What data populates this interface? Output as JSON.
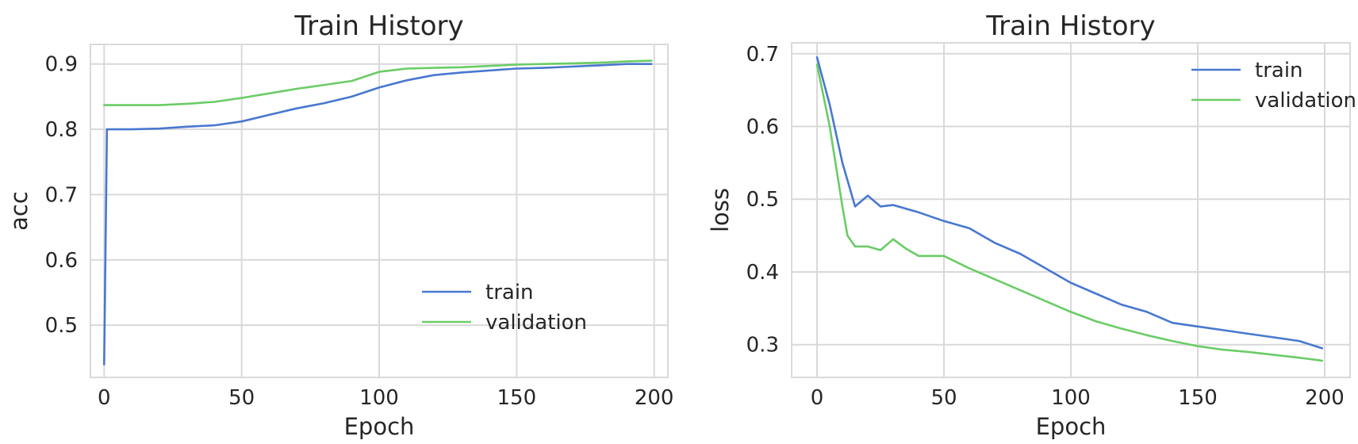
{
  "chart_data": [
    {
      "type": "line",
      "title": "Train History",
      "xlabel": "Epoch",
      "ylabel": "acc",
      "xlim": [
        -5,
        205
      ],
      "ylim": [
        0.42,
        0.93
      ],
      "xticks": [
        0,
        50,
        100,
        150,
        200
      ],
      "yticks": [
        0.5,
        0.6,
        0.7,
        0.8,
        0.9
      ],
      "ytick_labels": [
        "0.5",
        "0.6",
        "0.7",
        "0.8",
        "0.9"
      ],
      "grid": true,
      "legend_position": "lower-right",
      "series": [
        {
          "name": "train",
          "color": "#4878cf",
          "x": [
            0,
            1,
            2,
            10,
            20,
            30,
            40,
            50,
            60,
            70,
            80,
            90,
            100,
            110,
            120,
            130,
            140,
            150,
            160,
            170,
            180,
            190,
            199
          ],
          "y": [
            0.44,
            0.8,
            0.8,
            0.8,
            0.801,
            0.804,
            0.806,
            0.812,
            0.822,
            0.832,
            0.84,
            0.85,
            0.864,
            0.875,
            0.883,
            0.887,
            0.89,
            0.893,
            0.894,
            0.896,
            0.898,
            0.9,
            0.9
          ]
        },
        {
          "name": "validation",
          "color": "#6acc65",
          "x": [
            0,
            10,
            20,
            30,
            40,
            50,
            60,
            70,
            80,
            90,
            100,
            110,
            120,
            130,
            140,
            150,
            160,
            170,
            180,
            190,
            199
          ],
          "y": [
            0.837,
            0.837,
            0.837,
            0.839,
            0.842,
            0.848,
            0.855,
            0.862,
            0.868,
            0.874,
            0.888,
            0.893,
            0.894,
            0.895,
            0.897,
            0.899,
            0.9,
            0.901,
            0.902,
            0.904,
            0.905
          ]
        }
      ]
    },
    {
      "type": "line",
      "title": "Train History",
      "xlabel": "Epoch",
      "ylabel": "loss",
      "xlim": [
        -10,
        210
      ],
      "ylim": [
        0.255,
        0.715
      ],
      "xticks": [
        0,
        50,
        100,
        150,
        200
      ],
      "yticks": [
        0.3,
        0.4,
        0.5,
        0.6,
        0.7
      ],
      "ytick_labels": [
        "0.3",
        "0.4",
        "0.5",
        "0.6",
        "0.7"
      ],
      "grid": true,
      "legend_position": "upper-right",
      "series": [
        {
          "name": "train",
          "color": "#4878cf",
          "x": [
            0,
            5,
            10,
            15,
            20,
            25,
            30,
            40,
            50,
            60,
            70,
            80,
            90,
            100,
            110,
            120,
            130,
            140,
            150,
            160,
            170,
            180,
            190,
            199
          ],
          "y": [
            0.695,
            0.63,
            0.55,
            0.49,
            0.505,
            0.49,
            0.492,
            0.482,
            0.47,
            0.46,
            0.44,
            0.425,
            0.405,
            0.385,
            0.37,
            0.355,
            0.345,
            0.33,
            0.325,
            0.32,
            0.315,
            0.31,
            0.305,
            0.295
          ]
        },
        {
          "name": "validation",
          "color": "#6acc65",
          "x": [
            0,
            5,
            10,
            12,
            15,
            20,
            25,
            30,
            35,
            40,
            50,
            60,
            70,
            80,
            90,
            100,
            110,
            120,
            130,
            140,
            150,
            160,
            170,
            180,
            190,
            199
          ],
          "y": [
            0.685,
            0.6,
            0.49,
            0.45,
            0.435,
            0.435,
            0.43,
            0.445,
            0.432,
            0.422,
            0.422,
            0.405,
            0.39,
            0.375,
            0.36,
            0.345,
            0.332,
            0.322,
            0.313,
            0.305,
            0.298,
            0.293,
            0.29,
            0.286,
            0.282,
            0.278
          ]
        }
      ]
    }
  ]
}
